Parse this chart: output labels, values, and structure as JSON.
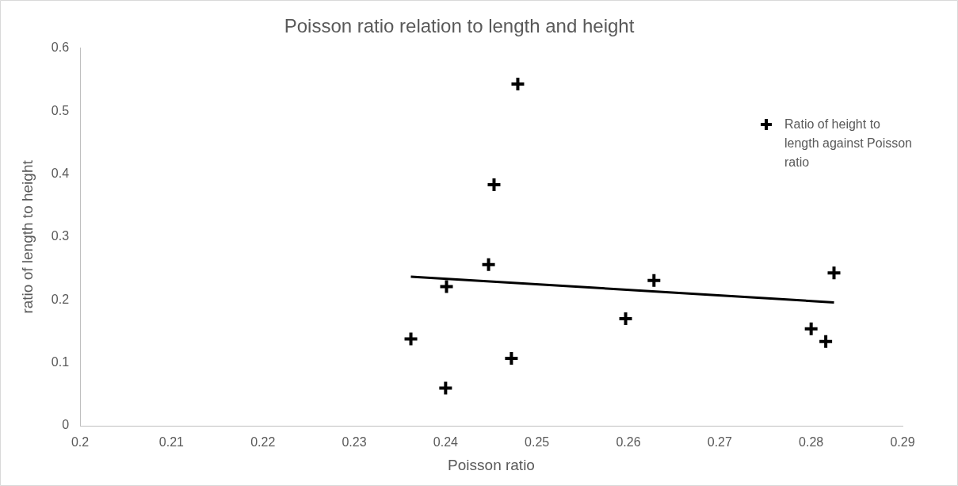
{
  "chart_data": {
    "type": "scatter",
    "title": "Poisson ratio relation to length and height",
    "xlabel": "Poisson ratio",
    "ylabel": "ratio of length to height",
    "xlim": [
      0.2,
      0.29
    ],
    "xticks": [
      0.2,
      0.21,
      0.22,
      0.23,
      0.24,
      0.25,
      0.26,
      0.27,
      0.28,
      0.29
    ],
    "ylim": [
      0,
      0.6
    ],
    "yticks": [
      0,
      0.1,
      0.2,
      0.3,
      0.4,
      0.5,
      0.6
    ],
    "grid": false,
    "legend": "top right",
    "series": [
      {
        "name": "Ratio of height to length against Poisson ratio",
        "color": "#000000",
        "marker": "cross",
        "x": [
          0.2479,
          0.2453,
          0.2447,
          0.2401,
          0.2362,
          0.2472,
          0.24,
          0.2597,
          0.2628,
          0.2825,
          0.28,
          0.2816
        ],
        "values": [
          0.543,
          0.383,
          0.256,
          0.221,
          0.138,
          0.107,
          0.06,
          0.17,
          0.231,
          0.243,
          0.154,
          0.134
        ]
      },
      {
        "type": "line",
        "marker": "none",
        "color": "#000000",
        "x": [
          0.2362,
          0.2825
        ],
        "values": [
          0.237,
          0.196
        ]
      }
    ]
  }
}
